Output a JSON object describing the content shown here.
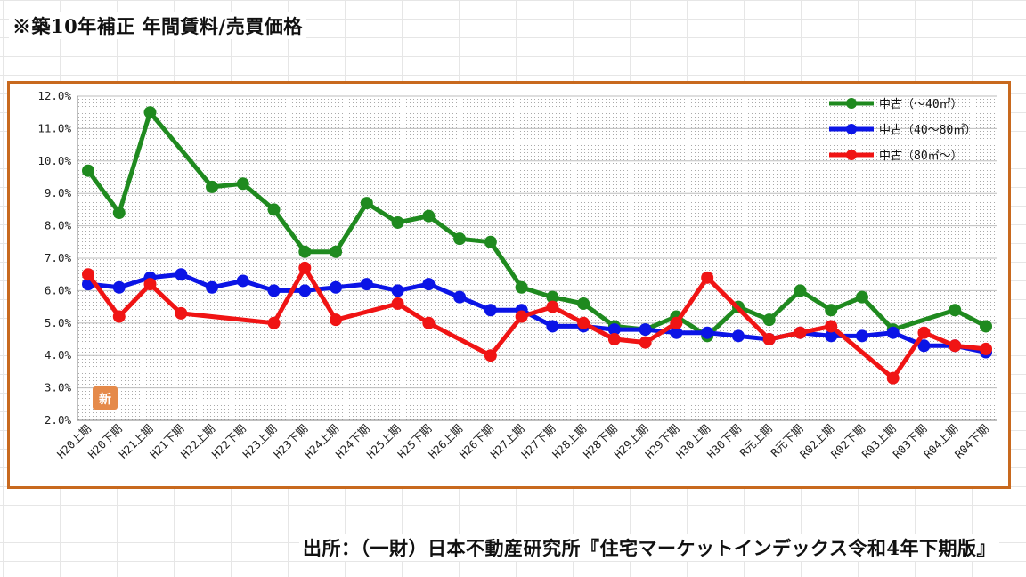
{
  "page": {
    "title": "※築10年補正 年間賃料/売買価格",
    "source": "出所：（一財）日本不動産研究所『住宅マーケットインデックス令和4年下期版』",
    "badge": "新"
  },
  "chart_data": {
    "type": "line",
    "ylim": [
      2.0,
      12.0
    ],
    "ytick_step": 1.0,
    "ytick_format": "percent_1dp",
    "grid": true,
    "legend_position": "top-right",
    "categories": [
      "H20上期",
      "H20下期",
      "H21上期",
      "H21下期",
      "H22上期",
      "H22下期",
      "H23上期",
      "H23下期",
      "H24上期",
      "H24下期",
      "H25上期",
      "H25下期",
      "H26上期",
      "H26下期",
      "H27上期",
      "H27下期",
      "H28上期",
      "H28下期",
      "H29上期",
      "H29下期",
      "H30上期",
      "H30下期",
      "R元上期",
      "R元下期",
      "R02上期",
      "R02下期",
      "R03上期",
      "R03下期",
      "R04上期",
      "R04下期"
    ],
    "series": [
      {
        "name": "中古（〜40㎡）",
        "color": "#1f8a1f",
        "values": [
          9.7,
          8.4,
          11.5,
          null,
          9.2,
          9.3,
          8.5,
          7.2,
          7.2,
          8.7,
          8.1,
          8.3,
          7.6,
          7.5,
          6.1,
          5.8,
          5.6,
          4.9,
          4.8,
          5.2,
          4.6,
          5.5,
          5.1,
          6.0,
          5.4,
          5.8,
          4.8,
          null,
          5.4,
          4.9
        ]
      },
      {
        "name": "中古（40〜80㎡）",
        "color": "#0b14e6",
        "values": [
          6.2,
          6.1,
          6.4,
          6.5,
          6.1,
          6.3,
          6.0,
          6.0,
          6.1,
          6.2,
          6.0,
          6.2,
          5.8,
          5.4,
          5.4,
          4.9,
          4.9,
          4.8,
          4.8,
          4.7,
          4.7,
          4.6,
          4.5,
          4.7,
          4.6,
          4.6,
          4.7,
          4.3,
          4.3,
          4.1
        ]
      },
      {
        "name": "中古（80㎡〜）",
        "color": "#f01414",
        "values": [
          6.5,
          5.2,
          6.2,
          5.3,
          null,
          null,
          5.0,
          6.7,
          5.1,
          null,
          5.6,
          5.0,
          null,
          4.0,
          5.2,
          5.5,
          5.0,
          4.5,
          4.4,
          5.0,
          6.4,
          null,
          4.5,
          4.7,
          4.9,
          null,
          3.3,
          4.7,
          4.3,
          4.2
        ]
      }
    ]
  }
}
